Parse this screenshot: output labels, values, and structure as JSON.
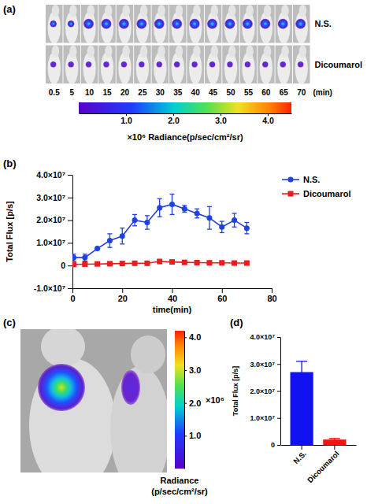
{
  "chart_data": [
    {
      "label": "(a)",
      "type": "image_strip",
      "rows": [
        "N.S.",
        "Dicoumarol"
      ],
      "categories": [
        0.5,
        5,
        10,
        15,
        20,
        25,
        30,
        35,
        40,
        45,
        50,
        55,
        60,
        65,
        70
      ],
      "x_label": "(min)",
      "colorbar": {
        "range": [
          0,
          4.5
        ],
        "ticks": [
          {
            "value": 1,
            "label": "1.0"
          },
          {
            "value": 2,
            "label": "2.0"
          },
          {
            "value": 3,
            "label": "3.0"
          },
          {
            "value": 4,
            "label": "4.0"
          }
        ],
        "title": "×10⁶ Radiance(p/sec/cm²/sr)"
      }
    },
    {
      "label": "(b)",
      "type": "line",
      "x_label": "time(min)",
      "y_label": "Total Flux [p/s]",
      "x": [
        0.5,
        5,
        10,
        15,
        20,
        25,
        30,
        35,
        40,
        45,
        50,
        55,
        60,
        65,
        70
      ],
      "xlim": [
        0,
        80
      ],
      "xticks": [
        0,
        20,
        40,
        60,
        80
      ],
      "ylim": [
        -10000000,
        40000000
      ],
      "yticks": [
        {
          "value": -10000000,
          "label": "-1.0×10⁷"
        },
        0,
        {
          "value": 10000000,
          "label": "1.0×10⁷"
        },
        {
          "value": 20000000,
          "label": "2.0×10⁷"
        },
        {
          "value": 30000000,
          "label": "3.0×10⁷"
        },
        {
          "value": 40000000,
          "label": "4.0×10⁷"
        }
      ],
      "legend": "right",
      "series": [
        {
          "name": "N.S.",
          "color": "#2040e0",
          "marker": "circle",
          "values": [
            3500000,
            3500000,
            7500000,
            11000000,
            13000000,
            20000000,
            19000000,
            25500000,
            27000000,
            25000000,
            23000000,
            21000000,
            17000000,
            20000000,
            16500000
          ],
          "errors": [
            1500000,
            1500000,
            500000,
            3000000,
            3500000,
            2500000,
            3000000,
            4000000,
            4500000,
            1500000,
            2000000,
            5000000,
            2500000,
            3000000,
            2500000
          ]
        },
        {
          "name": "Dicoumarol",
          "color": "#e61e1e",
          "marker": "square",
          "values": [
            500000,
            600000,
            700000,
            800000,
            900000,
            1000000,
            1000000,
            1800000,
            1600000,
            1400000,
            1300000,
            1200000,
            1200000,
            1100000,
            1100000
          ],
          "errors": [
            200000,
            200000,
            200000,
            200000,
            300000,
            300000,
            300000,
            400000,
            300000,
            300000,
            300000,
            300000,
            200000,
            200000,
            200000
          ]
        }
      ]
    },
    {
      "label": "(c)",
      "type": "image",
      "colorbar": {
        "range": [
          0,
          4.2
        ],
        "ticks": [
          {
            "value": 1,
            "label": "1.0"
          },
          {
            "value": 2,
            "label": "2.0"
          },
          {
            "value": 3,
            "label": "3.0"
          },
          {
            "value": 4,
            "label": "4.0"
          }
        ],
        "multiplier": "×10⁶",
        "title": "Radiance (p/sec/cm²/sr)"
      }
    },
    {
      "label": "(d)",
      "type": "bar",
      "y_label": "Total Flux [p/s]",
      "categories": [
        "N.S.",
        "Dicoumarol"
      ],
      "values": [
        27000000,
        2000000
      ],
      "errors": [
        4000000,
        400000
      ],
      "colors": [
        "#1212f0",
        "#f01414"
      ],
      "ylim": [
        0,
        40000000
      ],
      "yticks": [
        0,
        {
          "value": 10000000,
          "label": "1.0×10⁷"
        },
        {
          "value": 20000000,
          "label": "2.0×10⁷"
        },
        {
          "value": 30000000,
          "label": "3.0×10⁷"
        },
        {
          "value": 40000000,
          "label": "4.0×10⁷"
        }
      ]
    }
  ]
}
